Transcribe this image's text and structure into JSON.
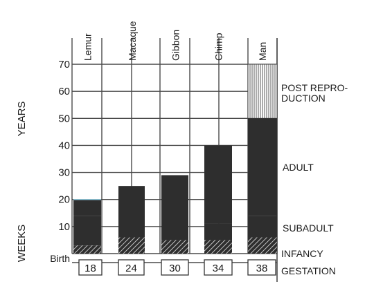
{
  "chart_data": {
    "type": "bar",
    "title": "",
    "ylabel_years": "YEARS",
    "ylabel_weeks": "WEEKS",
    "y_ticks": [
      "10",
      "20",
      "30",
      "40",
      "50",
      "60",
      "70"
    ],
    "ylim": [
      0,
      70
    ],
    "birth_label": "Birth",
    "categories": [
      "Lemur",
      "Macaque",
      "Gibbon",
      "Chimp",
      "Man"
    ],
    "gestation_weeks": [
      "18",
      "24",
      "30",
      "34",
      "38"
    ],
    "series": [
      {
        "name": "INFANCY",
        "values": [
          3,
          6,
          5,
          5,
          6
        ]
      },
      {
        "name": "SUBADULT",
        "values": [
          14,
          25,
          29,
          11,
          14
        ]
      },
      {
        "name": "ADULT",
        "values": [
          20,
          25,
          29,
          40,
          50
        ]
      },
      {
        "name": "POST REPRODUCTION",
        "values": [
          0,
          0,
          0,
          0,
          70
        ]
      }
    ],
    "stage_labels": {
      "post_repro_line1": "POST REPRO-",
      "post_repro_line2": "DUCTION",
      "adult": "ADULT",
      "subadult": "SUBADULT",
      "infancy": "INFANCY",
      "gestation": "GESTATION"
    },
    "grid": true,
    "colors": {
      "bar": "#2e2e2e",
      "grid": "#4a4a4a",
      "background": "#ffffff"
    }
  }
}
